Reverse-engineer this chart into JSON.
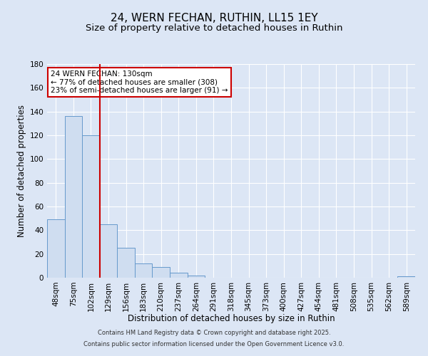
{
  "title": "24, WERN FECHAN, RUTHIN, LL15 1EY",
  "subtitle": "Size of property relative to detached houses in Ruthin",
  "xlabel": "Distribution of detached houses by size in Ruthin",
  "ylabel": "Number of detached properties",
  "bin_labels": [
    "48sqm",
    "75sqm",
    "102sqm",
    "129sqm",
    "156sqm",
    "183sqm",
    "210sqm",
    "237sqm",
    "264sqm",
    "291sqm",
    "318sqm",
    "345sqm",
    "373sqm",
    "400sqm",
    "427sqm",
    "454sqm",
    "481sqm",
    "508sqm",
    "535sqm",
    "562sqm",
    "589sqm"
  ],
  "bin_values": [
    49,
    136,
    120,
    45,
    25,
    12,
    9,
    4,
    2,
    0,
    0,
    0,
    0,
    0,
    0,
    0,
    0,
    0,
    0,
    0,
    1
  ],
  "bar_color": "#cfddf0",
  "bar_edge_color": "#6699cc",
  "vline_x": 2.5,
  "vline_color": "#cc0000",
  "ylim": [
    0,
    180
  ],
  "yticks": [
    0,
    20,
    40,
    60,
    80,
    100,
    120,
    140,
    160,
    180
  ],
  "annotation_title": "24 WERN FECHAN: 130sqm",
  "annotation_line1": "← 77% of detached houses are smaller (308)",
  "annotation_line2": "23% of semi-detached houses are larger (91) →",
  "annotation_box_color": "#ffffff",
  "annotation_box_edge": "#cc0000",
  "footer1": "Contains HM Land Registry data © Crown copyright and database right 2025.",
  "footer2": "Contains public sector information licensed under the Open Government Licence v3.0.",
  "background_color": "#dce6f5",
  "plot_background": "#dce6f5",
  "grid_color": "#ffffff",
  "title_fontsize": 11,
  "subtitle_fontsize": 9.5,
  "axis_label_fontsize": 8.5,
  "tick_fontsize": 7.5,
  "footer_fontsize": 6.0
}
